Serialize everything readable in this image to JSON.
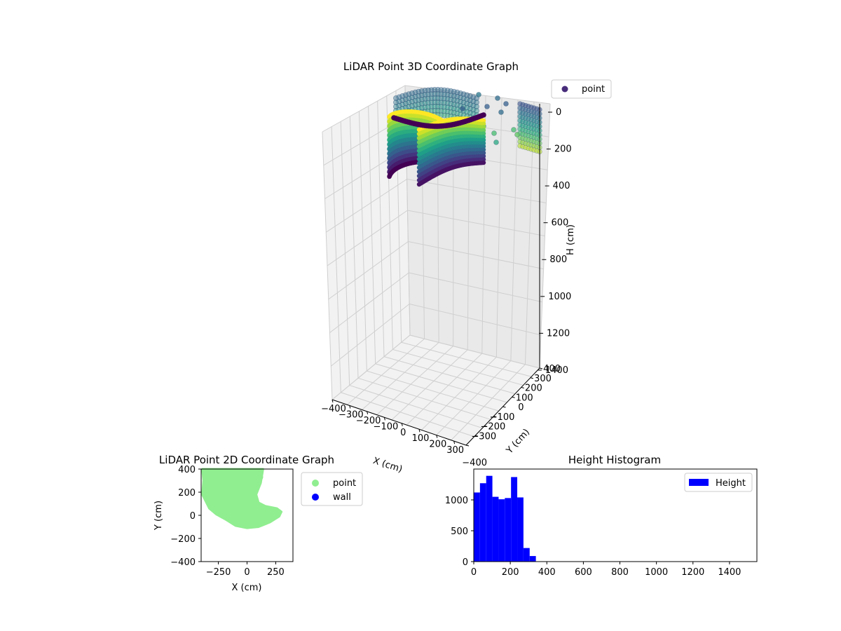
{
  "chart_data": [
    {
      "type": "scatter",
      "projection": "3d",
      "title": "LiDAR Point 3D Coordinate Graph",
      "xlabel": "X (cm)",
      "ylabel": "Y (cm)",
      "zlabel": "H (cm)",
      "x_ticks": [
        "−400",
        "−300",
        "−200",
        "−100",
        "0",
        "100",
        "200",
        "300"
      ],
      "y_ticks": [
        "−400",
        "−300",
        "−200",
        "−100",
        "0",
        "100",
        "200",
        "300",
        "400"
      ],
      "z_ticks": [
        "0",
        "200",
        "400",
        "600",
        "800",
        "1000",
        "1200",
        "1400"
      ],
      "zlim": [
        1500,
        0
      ],
      "colormap": "viridis",
      "grid": true,
      "legend": {
        "placement": "top-right-outside",
        "entries": [
          {
            "label": "point",
            "color": "#472c7a"
          }
        ]
      }
    },
    {
      "type": "scatter",
      "title": "LiDAR Point 2D Coordinate Graph",
      "xlabel": "X (cm)",
      "ylabel": "Y (cm)",
      "xlim": [
        -400,
        400
      ],
      "ylim": [
        -400,
        400
      ],
      "x_ticks": [
        "−250",
        "0",
        "250"
      ],
      "y_ticks": [
        "−400",
        "−200",
        "0",
        "200",
        "400"
      ],
      "series": [
        {
          "name": "point",
          "color": "#90ee90"
        },
        {
          "name": "wall",
          "color": "#0000ff"
        }
      ],
      "legend": {
        "placement": "right-outside"
      }
    },
    {
      "type": "bar",
      "title": "Height Histogram",
      "xlim": [
        0,
        1550
      ],
      "ylim": [
        0,
        1500
      ],
      "x_ticks": [
        "0",
        "200",
        "400",
        "600",
        "800",
        "1000",
        "1200",
        "1400"
      ],
      "y_ticks": [
        "0",
        "500",
        "1000"
      ],
      "series": [
        {
          "name": "Height",
          "color": "#0000ff"
        }
      ],
      "bins": [
        {
          "x0": 0,
          "x1": 34,
          "value": 1120
        },
        {
          "x0": 34,
          "x1": 68,
          "value": 1270
        },
        {
          "x0": 68,
          "x1": 102,
          "value": 1390
        },
        {
          "x0": 102,
          "x1": 136,
          "value": 1050
        },
        {
          "x0": 136,
          "x1": 170,
          "value": 1010
        },
        {
          "x0": 170,
          "x1": 204,
          "value": 1030
        },
        {
          "x0": 204,
          "x1": 238,
          "value": 1370
        },
        {
          "x0": 238,
          "x1": 272,
          "value": 1040
        },
        {
          "x0": 272,
          "x1": 306,
          "value": 220
        },
        {
          "x0": 306,
          "x1": 340,
          "value": 90
        }
      ],
      "legend": {
        "placement": "top-right"
      }
    }
  ]
}
